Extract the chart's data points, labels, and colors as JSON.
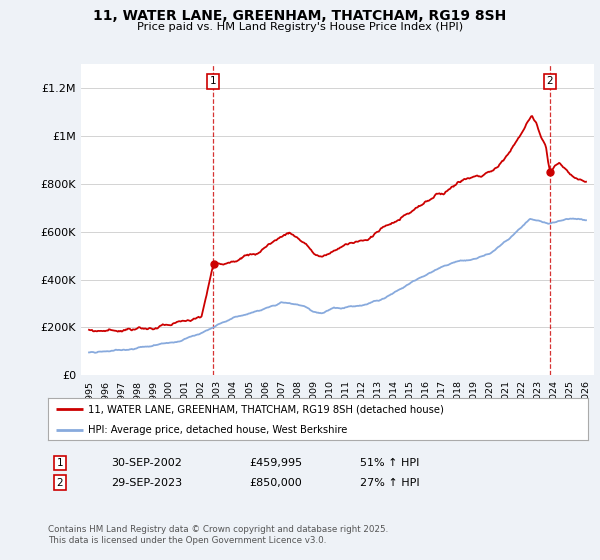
{
  "title": "11, WATER LANE, GREENHAM, THATCHAM, RG19 8SH",
  "subtitle": "Price paid vs. HM Land Registry's House Price Index (HPI)",
  "ylim": [
    0,
    1300000
  ],
  "yticks": [
    0,
    200000,
    400000,
    600000,
    800000,
    1000000,
    1200000
  ],
  "ytick_labels": [
    "£0",
    "£200K",
    "£400K",
    "£600K",
    "£800K",
    "£1M",
    "£1.2M"
  ],
  "legend_entries": [
    "11, WATER LANE, GREENHAM, THATCHAM, RG19 8SH (detached house)",
    "HPI: Average price, detached house, West Berkshire"
  ],
  "annotation1": {
    "label": "1",
    "date": "30-SEP-2002",
    "price": "£459,995",
    "pct": "51% ↑ HPI"
  },
  "annotation2": {
    "label": "2",
    "date": "29-SEP-2023",
    "price": "£850,000",
    "pct": "27% ↑ HPI"
  },
  "footnote": "Contains HM Land Registry data © Crown copyright and database right 2025.\nThis data is licensed under the Open Government Licence v3.0.",
  "bg_color": "#eef2f7",
  "plot_bg": "#ffffff",
  "grid_color": "#cccccc",
  "red_color": "#cc0000",
  "blue_color": "#88aadd",
  "purchase1_year": 2002.75,
  "purchase2_year": 2023.75,
  "xmin": 1994.5,
  "xmax": 2026.5
}
